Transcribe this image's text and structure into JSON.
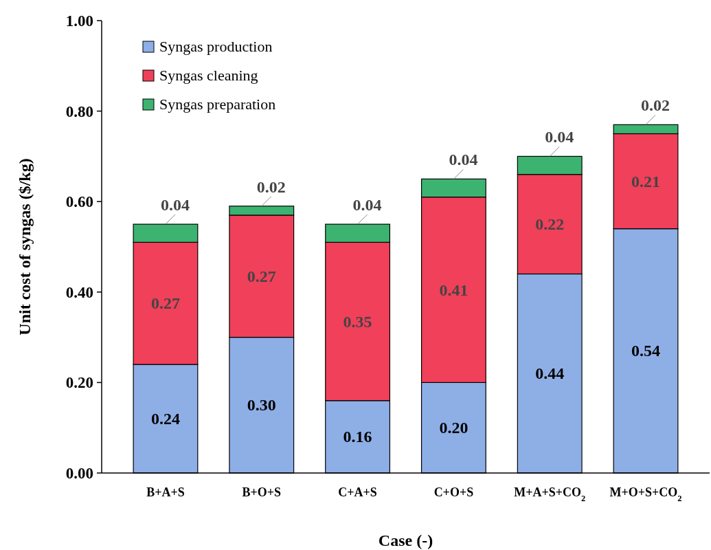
{
  "chart_data": {
    "type": "bar",
    "stacked": true,
    "xlabel": "Case (-)",
    "ylabel": "Unit cost of syngas ($/kg)",
    "categories": [
      "B+A+S",
      "B+O+S",
      "C+A+S",
      "C+O+S",
      "M+A+S+CO$_{2}$",
      "M+O+S+CO$_{2}$"
    ],
    "series": [
      {
        "name": "Syngas production",
        "color": "#8eaee6",
        "values": [
          0.24,
          0.3,
          0.16,
          0.2,
          0.44,
          0.54
        ],
        "value_labels": [
          "0.24",
          "0.30",
          "0.16",
          "0.20",
          "0.44",
          "0.54"
        ]
      },
      {
        "name": "Syngas cleaning",
        "color": "#f0405a",
        "values": [
          0.27,
          0.27,
          0.35,
          0.41,
          0.22,
          0.21
        ],
        "value_labels": [
          "0.27",
          "0.27",
          "0.35",
          "0.41",
          "0.22",
          "0.21"
        ]
      },
      {
        "name": "Syngas preparation",
        "color": "#3cb371",
        "values": [
          0.04,
          0.02,
          0.04,
          0.04,
          0.04,
          0.02
        ],
        "value_labels": [
          "0.04",
          "0.02",
          "0.04",
          "0.04",
          "0.04",
          "0.02"
        ]
      }
    ],
    "ylim": [
      0,
      1
    ],
    "yticks": [
      {
        "value": 0,
        "label": "0.00"
      },
      {
        "value": 0.2,
        "label": "0.20"
      },
      {
        "value": 0.4,
        "label": "0.40"
      },
      {
        "value": 0.6,
        "label": "0.60"
      },
      {
        "value": 0.8,
        "label": "0.80"
      },
      {
        "value": 1,
        "label": "1.00"
      }
    ],
    "legend": "top left",
    "grid": false
  }
}
